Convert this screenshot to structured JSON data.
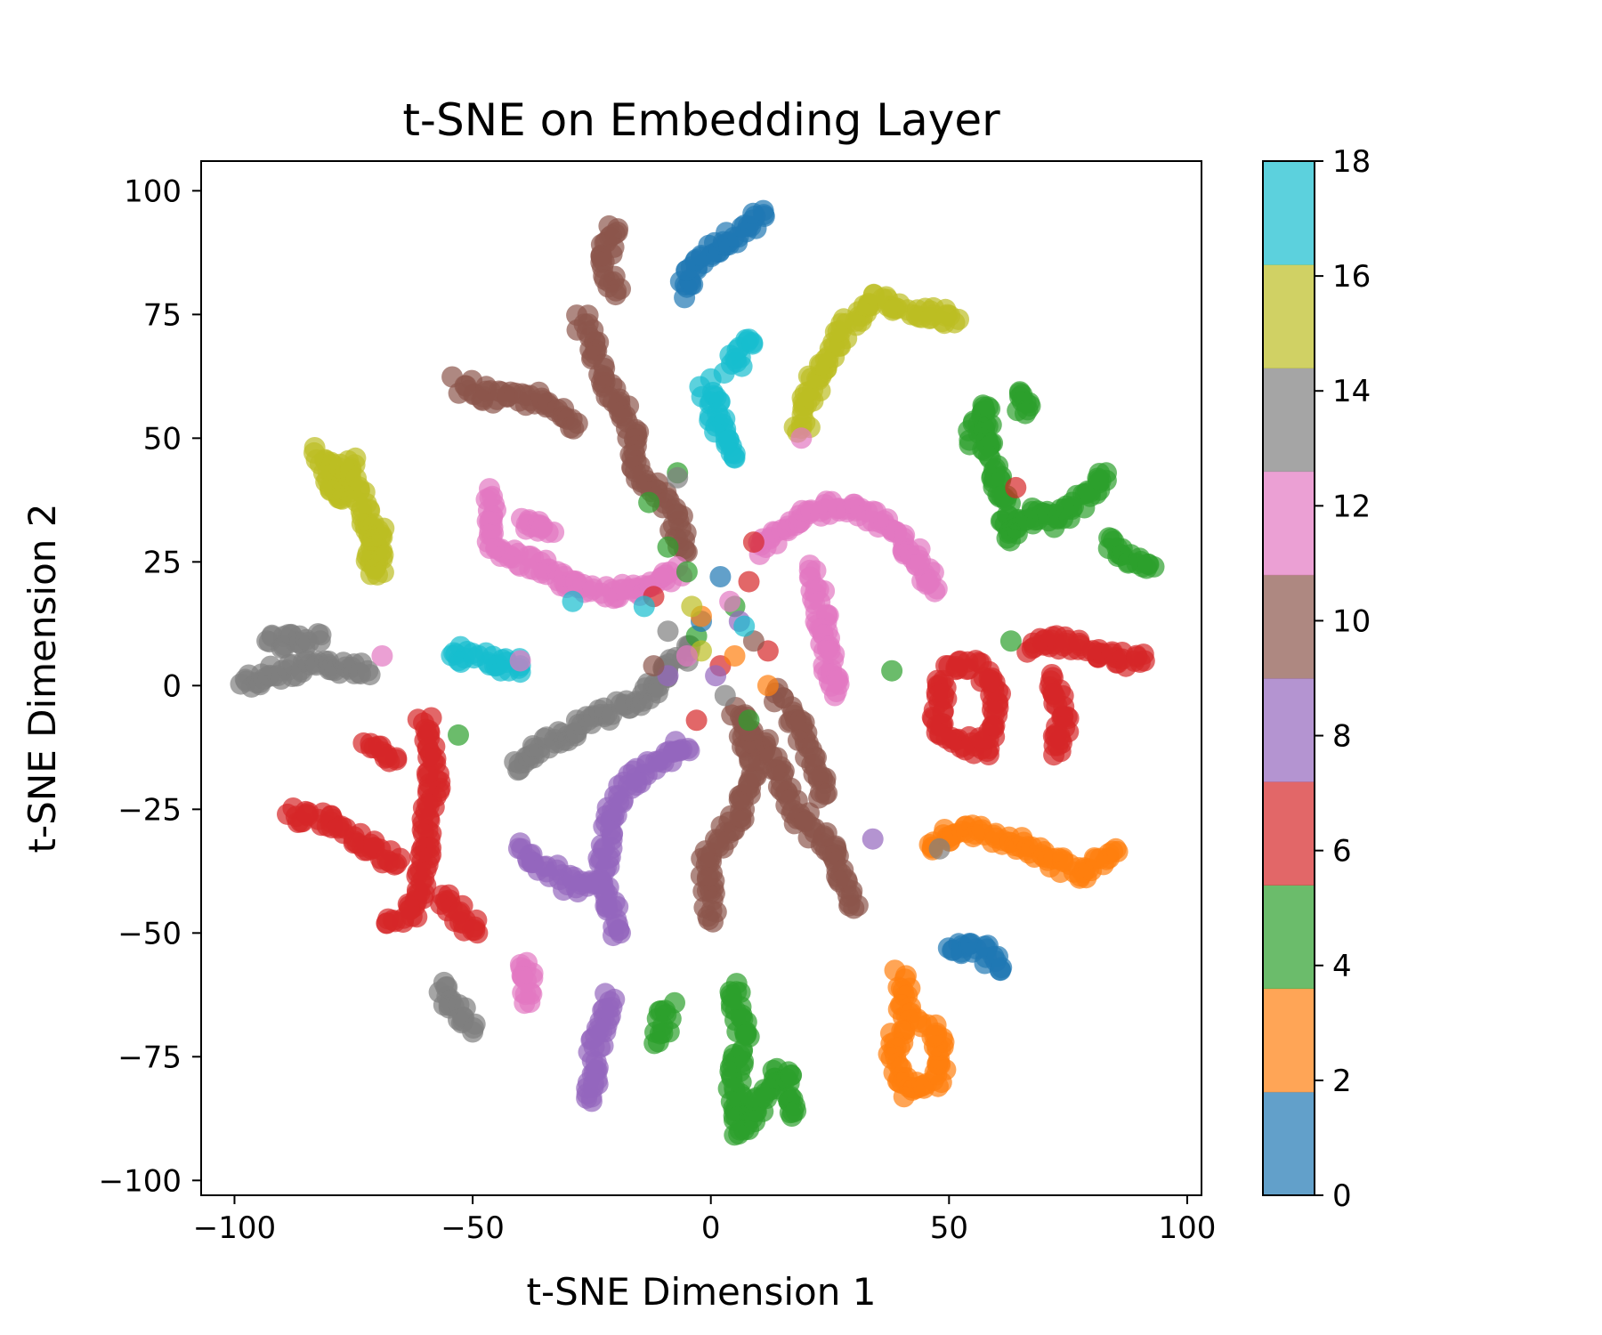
{
  "chart_data": {
    "type": "scatter",
    "title": "t-SNE on Embedding Layer",
    "xlabel": "t-SNE Dimension 1",
    "ylabel": "t-SNE Dimension 2",
    "xlim": [
      -107,
      103
    ],
    "ylim": [
      -103,
      106
    ],
    "xticks": [
      -100,
      -50,
      0,
      50,
      100
    ],
    "xtick_labels": [
      "−100",
      "−50",
      "0",
      "50",
      "100"
    ],
    "yticks": [
      -100,
      -75,
      -50,
      -25,
      0,
      25,
      50,
      75,
      100
    ],
    "ytick_labels": [
      "−100",
      "−75",
      "−50",
      "−25",
      "0",
      "25",
      "50",
      "75",
      "100"
    ],
    "grid": false,
    "colorbar": {
      "range": [
        0,
        18
      ],
      "ticks": [
        0,
        2,
        4,
        6,
        8,
        10,
        12,
        14,
        16,
        18
      ],
      "tick_labels": [
        "0",
        "2",
        "4",
        "6",
        "8",
        "10",
        "12",
        "14",
        "16",
        "18"
      ],
      "colors": [
        "#1f77b4",
        "#ff7f0e",
        "#2ca02c",
        "#d62728",
        "#9467bd",
        "#8c564b",
        "#e377c2",
        "#7f7f7f",
        "#bcbd22",
        "#17becf"
      ],
      "alpha": 0.7
    },
    "clusters": [
      {
        "label": 0,
        "path": [
          [
            -6,
            79
          ],
          [
            -3,
            86
          ],
          [
            3,
            90
          ],
          [
            9,
            93
          ],
          [
            11,
            96
          ]
        ]
      },
      {
        "label": 0,
        "path": [
          [
            50,
            -54
          ],
          [
            56,
            -53
          ],
          [
            61,
            -57
          ]
        ]
      },
      {
        "label": 2,
        "path": [
          [
            46,
            -33
          ],
          [
            52,
            -29
          ],
          [
            62,
            -31
          ],
          [
            70,
            -35
          ],
          [
            78,
            -38
          ],
          [
            85,
            -33
          ]
        ]
      },
      {
        "label": 2,
        "path": [
          [
            40,
            -59
          ],
          [
            41,
            -66
          ],
          [
            38,
            -74
          ],
          [
            42,
            -82
          ],
          [
            48,
            -79
          ],
          [
            48,
            -72
          ],
          [
            44,
            -68
          ]
        ]
      },
      {
        "label": 4,
        "path": [
          [
            55,
            50
          ],
          [
            57,
            57
          ],
          [
            59,
            45
          ],
          [
            61,
            38
          ],
          [
            63,
            30
          ],
          [
            67,
            35
          ],
          [
            72,
            33
          ],
          [
            78,
            38
          ],
          [
            83,
            43
          ]
        ]
      },
      {
        "label": 4,
        "path": [
          [
            64,
            60
          ],
          [
            66,
            55
          ]
        ]
      },
      {
        "label": 4,
        "path": [
          [
            83,
            29
          ],
          [
            88,
            26
          ],
          [
            93,
            24
          ]
        ]
      },
      {
        "label": 4,
        "path": [
          [
            5,
            -61
          ],
          [
            7,
            -70
          ],
          [
            5,
            -80
          ],
          [
            6,
            -90
          ],
          [
            10,
            -85
          ],
          [
            15,
            -78
          ],
          [
            17,
            -87
          ]
        ]
      },
      {
        "label": 4,
        "path": [
          [
            -9,
            -65
          ],
          [
            -11,
            -72
          ]
        ]
      },
      {
        "label": 6,
        "path": [
          [
            -72,
            -12
          ],
          [
            -66,
            -15
          ]
        ]
      },
      {
        "label": 6,
        "path": [
          [
            -60,
            -7
          ],
          [
            -58,
            -20
          ],
          [
            -60,
            -33
          ],
          [
            -62,
            -45
          ],
          [
            -68,
            -48
          ]
        ]
      },
      {
        "label": 6,
        "path": [
          [
            -88,
            -26
          ],
          [
            -80,
            -27
          ],
          [
            -73,
            -32
          ],
          [
            -66,
            -36
          ]
        ]
      },
      {
        "label": 6,
        "path": [
          [
            -56,
            -42
          ],
          [
            -52,
            -47
          ],
          [
            -49,
            -50
          ]
        ]
      },
      {
        "label": 6,
        "path": [
          [
            49,
            2
          ],
          [
            47,
            -9
          ],
          [
            57,
            -13
          ],
          [
            60,
            -2
          ],
          [
            56,
            4
          ],
          [
            50,
            4
          ]
        ]
      },
      {
        "label": 6,
        "path": [
          [
            66,
            8
          ],
          [
            74,
            9
          ],
          [
            84,
            6
          ],
          [
            91,
            5
          ]
        ]
      },
      {
        "label": 6,
        "path": [
          [
            72,
            2
          ],
          [
            74,
            -7
          ],
          [
            72,
            -14
          ]
        ]
      },
      {
        "label": 8,
        "path": [
          [
            -5,
            -12
          ],
          [
            -12,
            -16
          ],
          [
            -18,
            -20
          ],
          [
            -22,
            -30
          ],
          [
            -23,
            -40
          ],
          [
            -19,
            -50
          ]
        ]
      },
      {
        "label": 8,
        "path": [
          [
            -40,
            -33
          ],
          [
            -33,
            -38
          ],
          [
            -28,
            -41
          ],
          [
            -23,
            -40
          ]
        ]
      },
      {
        "label": 8,
        "path": [
          [
            -21,
            -63
          ],
          [
            -24,
            -73
          ],
          [
            -25,
            -84
          ]
        ]
      },
      {
        "label": 10,
        "path": [
          [
            -21,
            93
          ],
          [
            -22,
            85
          ],
          [
            -20,
            79
          ]
        ]
      },
      {
        "label": 10,
        "path": [
          [
            -27,
            74
          ],
          [
            -22,
            62
          ],
          [
            -17,
            52
          ],
          [
            -15,
            43
          ],
          [
            -8,
            35
          ],
          [
            -5,
            27
          ]
        ]
      },
      {
        "label": 10,
        "path": [
          [
            -53,
            61
          ],
          [
            -45,
            58
          ],
          [
            -37,
            58
          ],
          [
            -28,
            53
          ]
        ]
      },
      {
        "label": 10,
        "path": [
          [
            5,
            -5
          ],
          [
            12,
            -14
          ],
          [
            18,
            -26
          ],
          [
            26,
            -34
          ],
          [
            30,
            -45
          ]
        ]
      },
      {
        "label": 10,
        "path": [
          [
            14,
            -2
          ],
          [
            18,
            -8
          ],
          [
            24,
            -22
          ]
        ]
      },
      {
        "label": 10,
        "path": [
          [
            0,
            -47
          ],
          [
            -1,
            -35
          ],
          [
            5,
            -28
          ],
          [
            9,
            -18
          ],
          [
            7,
            -8
          ]
        ]
      },
      {
        "label": 12,
        "path": [
          [
            -47,
            39
          ],
          [
            -45,
            27
          ],
          [
            -36,
            24
          ],
          [
            -27,
            19
          ],
          [
            -14,
            19
          ],
          [
            -7,
            24
          ]
        ]
      },
      {
        "label": 12,
        "path": [
          [
            -40,
            34
          ],
          [
            -33,
            31
          ]
        ]
      },
      {
        "label": 12,
        "path": [
          [
            10,
            28
          ],
          [
            22,
            35
          ],
          [
            28,
            37
          ],
          [
            36,
            33
          ],
          [
            43,
            26
          ],
          [
            47,
            19
          ]
        ]
      },
      {
        "label": 12,
        "path": [
          [
            22,
            23
          ],
          [
            24,
            10
          ],
          [
            26,
            -2
          ]
        ]
      },
      {
        "label": 12,
        "path": [
          [
            -39,
            -56
          ],
          [
            -38,
            -64
          ]
        ]
      },
      {
        "label": 14,
        "path": [
          [
            -98,
            0
          ],
          [
            -90,
            3
          ],
          [
            -80,
            4
          ],
          [
            -72,
            3
          ]
        ]
      },
      {
        "label": 14,
        "path": [
          [
            -93,
            9
          ],
          [
            -82,
            9
          ]
        ]
      },
      {
        "label": 14,
        "path": [
          [
            -41,
            -17
          ],
          [
            -35,
            -12
          ],
          [
            -25,
            -7
          ],
          [
            -12,
            -1
          ],
          [
            -5,
            8
          ]
        ]
      },
      {
        "label": 14,
        "path": [
          [
            -57,
            -61
          ],
          [
            -53,
            -66
          ],
          [
            -50,
            -70
          ]
        ]
      },
      {
        "label": 16,
        "path": [
          [
            -82,
            48
          ],
          [
            -79,
            38
          ],
          [
            -76,
            45
          ],
          [
            -73,
            35
          ],
          [
            -70,
            22
          ],
          [
            -70,
            32
          ],
          [
            -69,
            30
          ]
        ]
      },
      {
        "label": 16,
        "path": [
          [
            19,
            52
          ],
          [
            22,
            62
          ],
          [
            28,
            72
          ],
          [
            35,
            78
          ],
          [
            42,
            76
          ],
          [
            52,
            74
          ]
        ]
      },
      {
        "label": 18,
        "path": [
          [
            -54,
            7
          ],
          [
            -47,
            5
          ],
          [
            -40,
            4
          ]
        ]
      },
      {
        "label": 18,
        "path": [
          [
            -1,
            61
          ],
          [
            2,
            52
          ],
          [
            5,
            46
          ]
        ]
      },
      {
        "label": 18,
        "path": [
          [
            4,
            64
          ],
          [
            8,
            70
          ]
        ]
      }
    ],
    "scatter_points": [
      {
        "label": 4,
        "x": -5,
        "y": 23
      },
      {
        "label": 4,
        "x": -7,
        "y": 43
      },
      {
        "label": 4,
        "x": -13,
        "y": 37
      },
      {
        "label": 4,
        "x": -9,
        "y": 28
      },
      {
        "label": 4,
        "x": 5,
        "y": 16
      },
      {
        "label": 4,
        "x": 8,
        "y": -7
      },
      {
        "label": 4,
        "x": 38,
        "y": 3
      },
      {
        "label": 4,
        "x": 63,
        "y": 9
      },
      {
        "label": 4,
        "x": -53,
        "y": -10
      },
      {
        "label": 4,
        "x": -3,
        "y": 10
      },
      {
        "label": 0,
        "x": 2,
        "y": 22
      },
      {
        "label": 0,
        "x": -2,
        "y": 13
      },
      {
        "label": 6,
        "x": 9,
        "y": 29
      },
      {
        "label": 6,
        "x": -12,
        "y": 18
      },
      {
        "label": 6,
        "x": -3,
        "y": -7
      },
      {
        "label": 6,
        "x": 8,
        "y": 21
      },
      {
        "label": 6,
        "x": 12,
        "y": 7
      },
      {
        "label": 6,
        "x": 2,
        "y": 4
      },
      {
        "label": 6,
        "x": 64,
        "y": 40
      },
      {
        "label": 2,
        "x": 5,
        "y": 6
      },
      {
        "label": 2,
        "x": 12,
        "y": 0
      },
      {
        "label": 2,
        "x": -2,
        "y": 14
      },
      {
        "label": 16,
        "x": -4,
        "y": 16
      },
      {
        "label": 16,
        "x": -2,
        "y": 7
      },
      {
        "label": 16,
        "x": 19,
        "y": 52
      },
      {
        "label": 14,
        "x": -7,
        "y": 42
      },
      {
        "label": 14,
        "x": -9,
        "y": 11
      },
      {
        "label": 14,
        "x": 3,
        "y": -2
      },
      {
        "label": 14,
        "x": 48,
        "y": -33
      },
      {
        "label": 8,
        "x": 1,
        "y": 2
      },
      {
        "label": 8,
        "x": 6,
        "y": 13
      },
      {
        "label": 8,
        "x": 34,
        "y": -31
      },
      {
        "label": 8,
        "x": -9,
        "y": 2
      },
      {
        "label": 12,
        "x": 4,
        "y": 17
      },
      {
        "label": 12,
        "x": -69,
        "y": 6
      },
      {
        "label": 12,
        "x": -40,
        "y": 5
      },
      {
        "label": 12,
        "x": -5,
        "y": 6
      },
      {
        "label": 12,
        "x": 19,
        "y": 50
      },
      {
        "label": 10,
        "x": -12,
        "y": 4
      },
      {
        "label": 10,
        "x": 9,
        "y": 9
      },
      {
        "label": 18,
        "x": -29,
        "y": 17
      },
      {
        "label": 18,
        "x": -14,
        "y": 16
      },
      {
        "label": 18,
        "x": 7,
        "y": 12
      }
    ]
  }
}
